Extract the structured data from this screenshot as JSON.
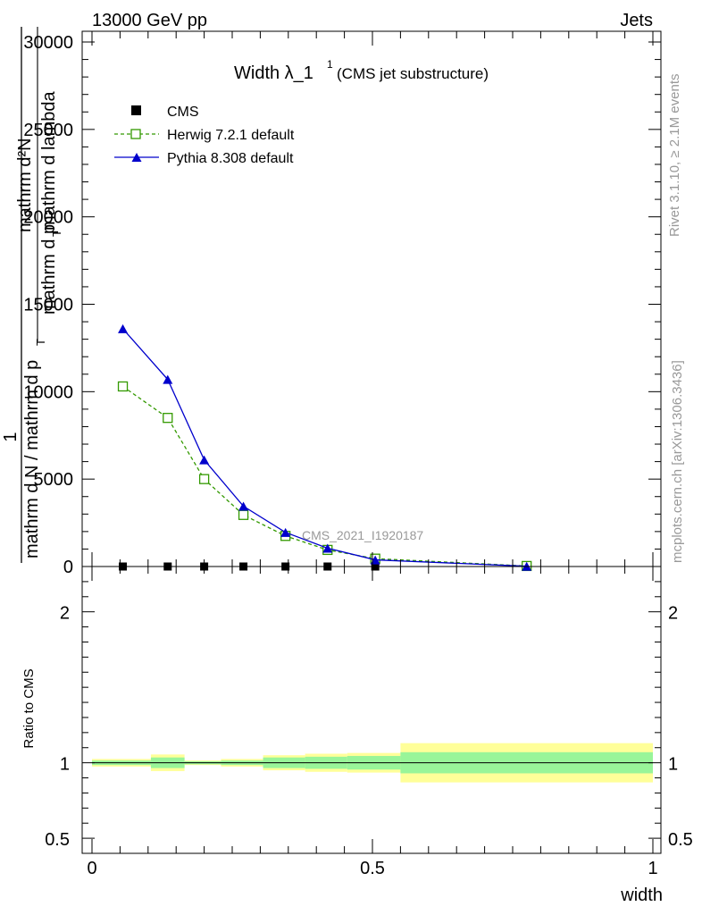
{
  "header": {
    "left": "13000 GeV pp",
    "right": "Jets"
  },
  "side_labels": {
    "rivet": "Rivet 3.1.10, ≥ 2.1M events",
    "mcplots": "mcplots.cern.ch [arXiv:1306.3436]"
  },
  "chart_data": [
    {
      "type": "line",
      "title": "Width λ_1",
      "title_sup": "1",
      "subtitle": "(CMS jet substructure)",
      "watermark": "CMS_2021_I1920187",
      "ylabel": {
        "numerator": "1",
        "denominator": "mathrm d N / mathrm d p",
        "denominator_sub": "T",
        "nested_numerator": "mathrm d²N",
        "nested_denominator": "mathrm d p",
        "nested_denominator_sub": "T",
        "nested_denominator_tail": " mathrm d lambda"
      },
      "xlim": [
        0,
        1
      ],
      "ylim": [
        0,
        30000
      ],
      "y_ticks": [
        0,
        5000,
        10000,
        15000,
        20000,
        25000,
        30000
      ],
      "y_tick_labels": [
        "0",
        "5000",
        "10000",
        "15000",
        "20000",
        "25000",
        "30000"
      ],
      "legend_position": "top-left",
      "series": [
        {
          "name": "CMS",
          "style": "data",
          "color": "#000000",
          "x": [
            0.055,
            0.135,
            0.2,
            0.27,
            0.345,
            0.42,
            0.505,
            0.775
          ],
          "values": [
            0,
            0,
            0,
            0,
            0,
            0,
            0,
            0
          ]
        },
        {
          "name": "Herwig 7.2.1 default",
          "style": "dashed-open-square",
          "color": "#339900",
          "x": [
            0.055,
            0.135,
            0.2,
            0.27,
            0.345,
            0.42,
            0.505,
            0.775
          ],
          "values": [
            10300,
            8500,
            5000,
            2950,
            1750,
            950,
            450,
            30
          ]
        },
        {
          "name": "Pythia 8.308 default",
          "style": "solid-filled-triangle",
          "color": "#0000cc",
          "x": [
            0.055,
            0.135,
            0.2,
            0.27,
            0.345,
            0.42,
            0.505,
            0.775
          ],
          "values": [
            13600,
            10700,
            6100,
            3450,
            1950,
            1050,
            380,
            15
          ]
        }
      ]
    },
    {
      "type": "area",
      "ylabel": "Ratio to CMS",
      "xlabel": "width",
      "xlim": [
        0,
        1
      ],
      "ylim": [
        0.4,
        2.3
      ],
      "y_ticks": [
        0.5,
        1,
        2
      ],
      "y_tick_labels": [
        "0.5",
        "1",
        "2"
      ],
      "x_ticks": [
        0,
        0.5,
        1
      ],
      "x_tick_labels": [
        "0",
        "0.5",
        "1"
      ],
      "bands": {
        "edges": [
          0.0,
          0.105,
          0.165,
          0.23,
          0.305,
          0.38,
          0.455,
          0.55,
          1.0
        ],
        "yellow_lo": [
          0.975,
          0.945,
          0.985,
          0.975,
          0.95,
          0.94,
          0.935,
          0.87
        ],
        "yellow_hi": [
          1.025,
          1.055,
          1.015,
          1.025,
          1.05,
          1.06,
          1.065,
          1.13
        ],
        "green_lo": [
          0.985,
          0.965,
          0.99,
          0.985,
          0.965,
          0.96,
          0.955,
          0.93
        ],
        "green_hi": [
          1.015,
          1.035,
          1.01,
          1.015,
          1.035,
          1.04,
          1.045,
          1.07
        ]
      },
      "colors": {
        "yellow": "#ffff99",
        "green": "#99f599",
        "reference": "#000000"
      }
    }
  ]
}
